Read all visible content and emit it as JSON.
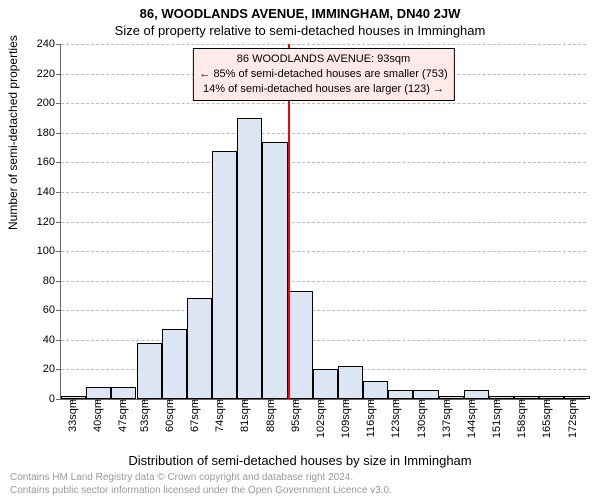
{
  "title_main": "86, WOODLANDS AVENUE, IMMINGHAM, DN40 2JW",
  "title_sub": "Size of property relative to semi-detached houses in Immingham",
  "ylabel": "Number of semi-detached properties",
  "xlabel": "Distribution of semi-detached houses by size in Immingham",
  "footer_line1": "Contains HM Land Registry data © Crown copyright and database right 2024.",
  "footer_line2": "Contains public sector information licensed under the Open Government Licence v3.0.",
  "histogram": {
    "type": "histogram",
    "background_color": "#ffffff",
    "bar_fill": "#dbe5f4",
    "bar_border": "#000000",
    "grid_color": "#bbbbbb",
    "marker_color": "#ff0000",
    "annotation_bg": "#ffe9e9",
    "ylim": [
      0,
      240
    ],
    "ytick_step": 20,
    "xrange": [
      30,
      176
    ],
    "xticks": [
      {
        "v": 33,
        "label": "33sqm"
      },
      {
        "v": 40,
        "label": "40sqm"
      },
      {
        "v": 47,
        "label": "47sqm"
      },
      {
        "v": 53,
        "label": "53sqm"
      },
      {
        "v": 60,
        "label": "60sqm"
      },
      {
        "v": 67,
        "label": "67sqm"
      },
      {
        "v": 74,
        "label": "74sqm"
      },
      {
        "v": 81,
        "label": "81sqm"
      },
      {
        "v": 88,
        "label": "88sqm"
      },
      {
        "v": 95,
        "label": "95sqm"
      },
      {
        "v": 102,
        "label": "102sqm"
      },
      {
        "v": 109,
        "label": "109sqm"
      },
      {
        "v": 116,
        "label": "116sqm"
      },
      {
        "v": 123,
        "label": "123sqm"
      },
      {
        "v": 130,
        "label": "130sqm"
      },
      {
        "v": 137,
        "label": "137sqm"
      },
      {
        "v": 144,
        "label": "144sqm"
      },
      {
        "v": 151,
        "label": "151sqm"
      },
      {
        "v": 158,
        "label": "158sqm"
      },
      {
        "v": 165,
        "label": "165sqm"
      },
      {
        "v": 172,
        "label": "172sqm"
      }
    ],
    "bars": [
      {
        "x": 30,
        "count": 2
      },
      {
        "x": 37,
        "count": 8
      },
      {
        "x": 44,
        "count": 8
      },
      {
        "x": 51,
        "count": 38
      },
      {
        "x": 58,
        "count": 47
      },
      {
        "x": 65,
        "count": 68
      },
      {
        "x": 72,
        "count": 168
      },
      {
        "x": 79,
        "count": 190
      },
      {
        "x": 86,
        "count": 174
      },
      {
        "x": 93,
        "count": 73
      },
      {
        "x": 100,
        "count": 20
      },
      {
        "x": 107,
        "count": 22
      },
      {
        "x": 114,
        "count": 12
      },
      {
        "x": 121,
        "count": 6
      },
      {
        "x": 128,
        "count": 6
      },
      {
        "x": 135,
        "count": 2
      },
      {
        "x": 142,
        "count": 6
      },
      {
        "x": 149,
        "count": 2
      },
      {
        "x": 156,
        "count": 2
      },
      {
        "x": 163,
        "count": 2
      },
      {
        "x": 170,
        "count": 2
      }
    ],
    "bar_bin_width": 7,
    "marker_value": 93,
    "annotation": {
      "line1": "86 WOODLANDS AVENUE: 93sqm",
      "line2": "← 85% of semi-detached houses are smaller (753)",
      "line3": "14% of semi-detached houses are larger (123) →"
    }
  }
}
